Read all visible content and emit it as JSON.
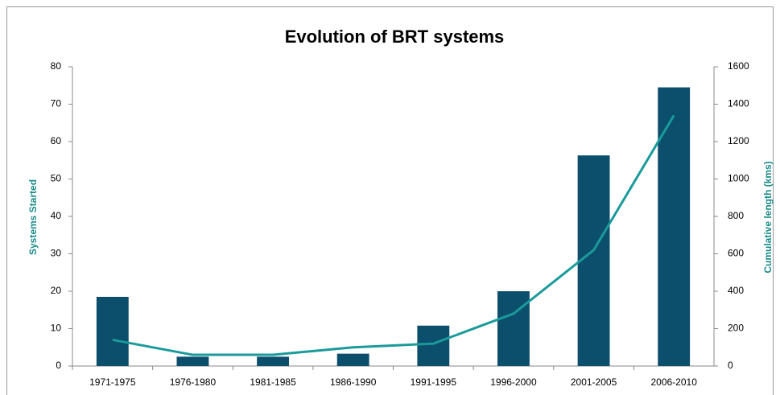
{
  "chart_data": {
    "type": "combo",
    "title": "Evolution of BRT systems",
    "y_label": "Systems Started",
    "y2_label": "Cumulative length (kms)",
    "categories": [
      "1971-1975",
      "1976-1980",
      "1981-1985",
      "1986-1990",
      "1991-1995",
      "1996-2000",
      "2001-2005",
      "2006-2010"
    ],
    "series": [
      {
        "name": "Systems Started",
        "type": "bar",
        "color": "#0b4f6c",
        "values": [
          18.5,
          2.5,
          2.5,
          3.3,
          10.8,
          20,
          56.3,
          74.5
        ]
      },
      {
        "name": "Cumulative length (kms)",
        "type": "line",
        "axis": "y2",
        "color": "#1a9a9a",
        "values": [
          140,
          60,
          60,
          100,
          120,
          280,
          620,
          1340
        ]
      }
    ],
    "ylim": [
      0,
      80
    ],
    "yticks": [
      0,
      10,
      20,
      30,
      40,
      50,
      60,
      70,
      80
    ],
    "y2lim": [
      0,
      1600
    ],
    "y2ticks": [
      0,
      200,
      400,
      600,
      800,
      1000,
      1200,
      1400,
      1600
    ],
    "grid": false
  }
}
